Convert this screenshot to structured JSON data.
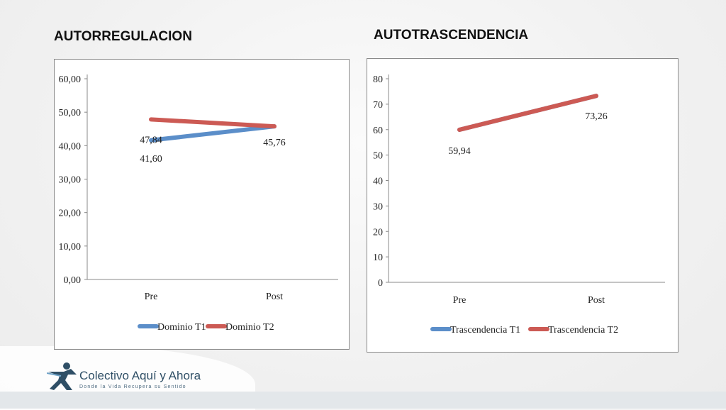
{
  "slide": {
    "left_title": "AUTORREGULACION",
    "right_title": "AUTOTRASCENDENCIA"
  },
  "logo": {
    "name": "Colectivo Aquí y Ahora",
    "tagline": "Donde la Vida Recupera su Sentido"
  },
  "chart_data": [
    {
      "type": "line",
      "title": "",
      "xlabel": "",
      "ylabel": "",
      "categories": [
        "Pre",
        "Post"
      ],
      "ylim": [
        0,
        60
      ],
      "yticks": [
        "0,00",
        "10,00",
        "20,00",
        "30,00",
        "40,00",
        "50,00",
        "60,00"
      ],
      "series": [
        {
          "name": "Dominio T1",
          "values": [
            41.6,
            45.76
          ],
          "color": "#5b8ec9",
          "labels": [
            "41,60",
            "45,76"
          ]
        },
        {
          "name": "Dominio T2",
          "values": [
            47.84,
            45.76
          ],
          "color": "#cc5a54",
          "labels": [
            "47,84",
            ""
          ]
        }
      ],
      "legend": "bottom",
      "grid": false
    },
    {
      "type": "line",
      "title": "",
      "xlabel": "",
      "ylabel": "",
      "categories": [
        "Pre",
        "Post"
      ],
      "ylim": [
        0,
        80
      ],
      "yticks": [
        "0",
        "10",
        "20",
        "30",
        "40",
        "50",
        "60",
        "70",
        "80"
      ],
      "series": [
        {
          "name": "Trascendencia T1",
          "values": [
            59.94,
            73.26
          ],
          "color": "#5b8ec9",
          "labels": [
            "",
            ""
          ]
        },
        {
          "name": "Trascendencia T2",
          "values": [
            59.94,
            73.26
          ],
          "color": "#cc5a54",
          "labels": [
            "59,94",
            "73,26"
          ]
        }
      ],
      "legend": "bottom",
      "grid": false
    }
  ]
}
